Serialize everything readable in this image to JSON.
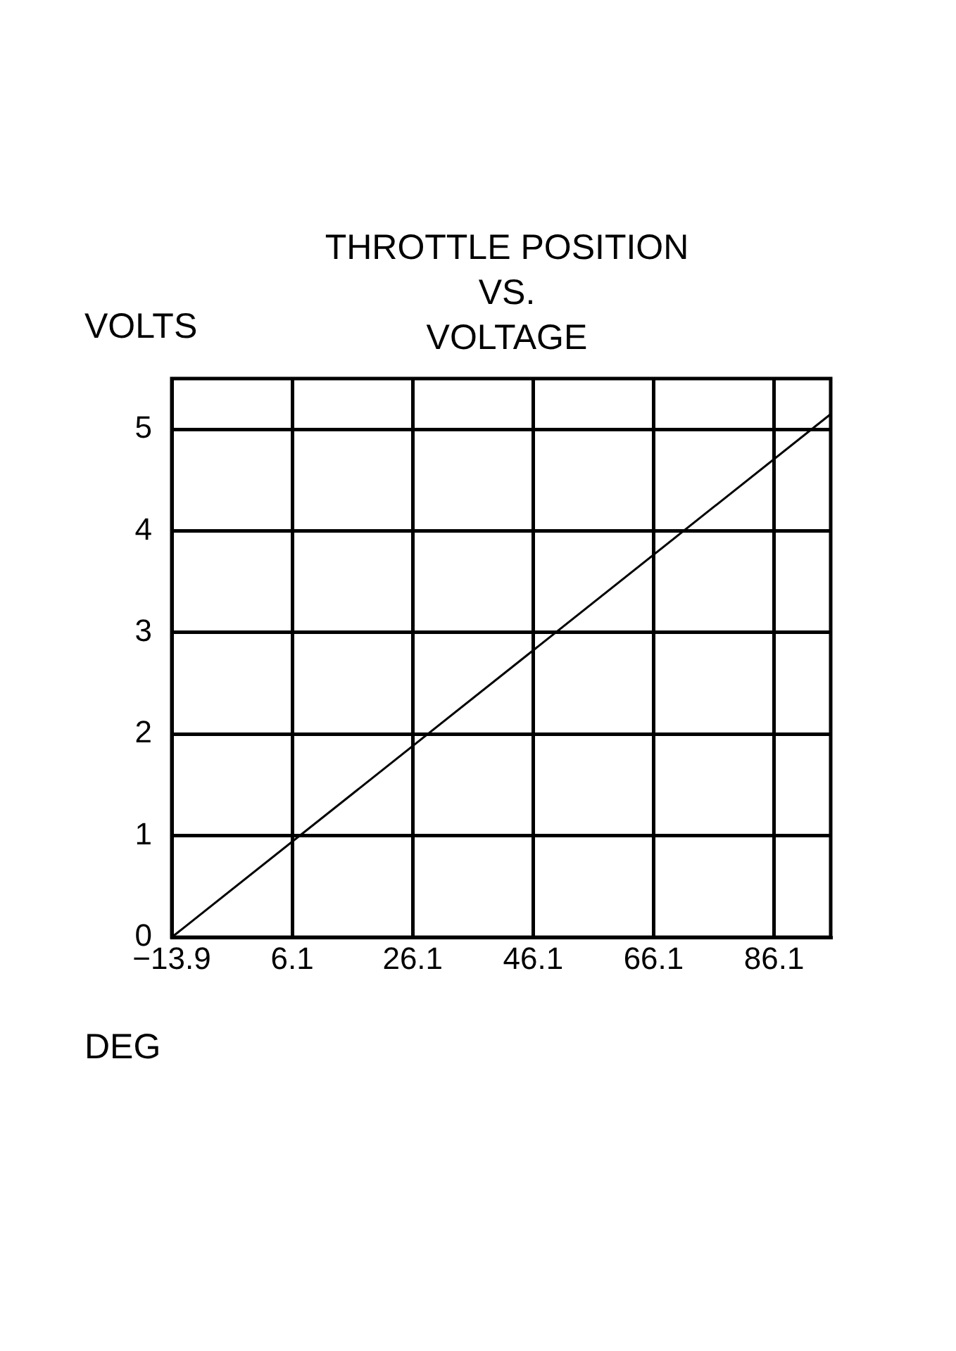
{
  "chart_data": {
    "type": "line",
    "title": "THROTTLE POSITION\nVS.\nVOLTAGE",
    "xlabel": "DEG",
    "ylabel": "VOLTS",
    "x": [
      -13.9,
      95.5
    ],
    "series": [
      {
        "color": "#000000",
        "values": [
          0,
          5.15
        ]
      }
    ],
    "xlim": [
      -13.9,
      95.5
    ],
    "xticks": [
      -13.9,
      6.1,
      26.1,
      46.1,
      66.1,
      86.1
    ],
    "ylim": [
      0,
      5.5
    ],
    "yticks": [
      0,
      1,
      2,
      3,
      4,
      5
    ],
    "grid": true,
    "legend": false,
    "marker": "none",
    "line_style": "solid"
  }
}
